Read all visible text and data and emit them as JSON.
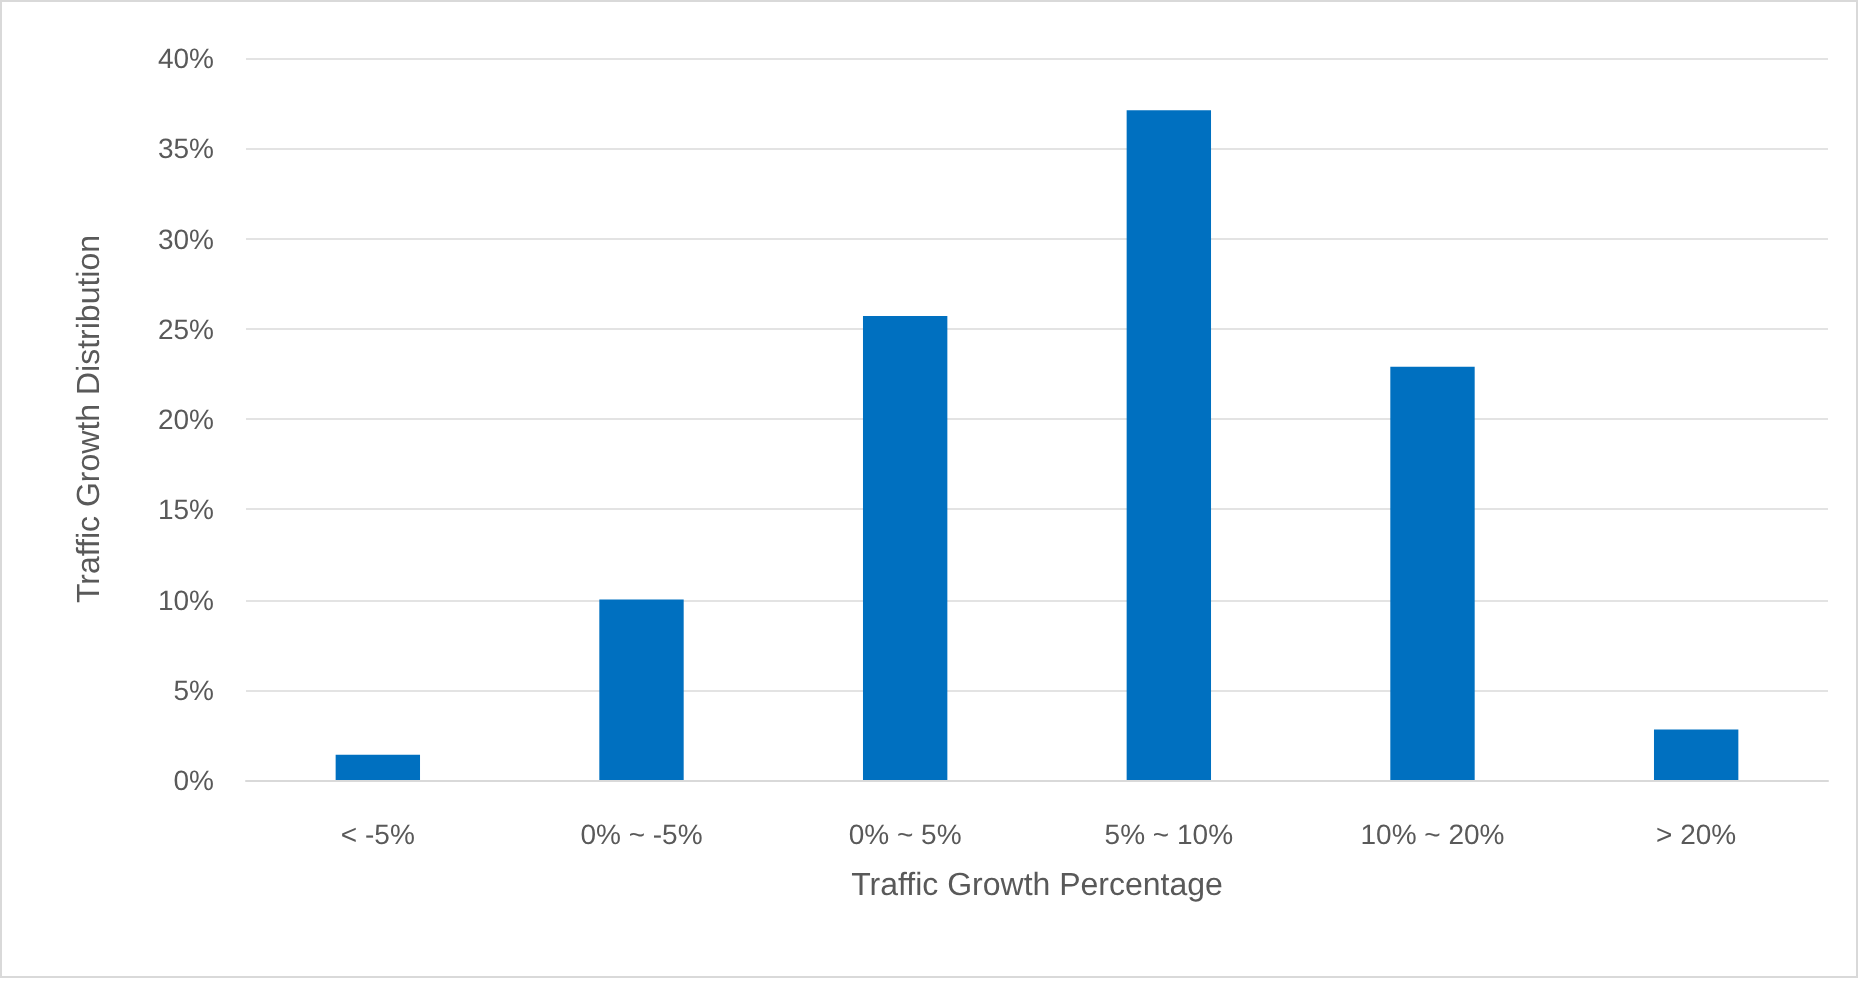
{
  "chart_data": {
    "type": "bar",
    "xlabel": "Traffic Growth Percentage",
    "ylabel": "Traffic Growth Distribution",
    "categories": [
      "< -5%",
      "0% ~ -5%",
      "0% ~ 5%",
      "5% ~ 10%",
      "10% ~ 20%",
      "> 20%"
    ],
    "values": [
      1.4,
      10,
      25.7,
      37.1,
      22.9,
      2.8
    ],
    "color": "#0070c0",
    "ylim": [
      0,
      40
    ],
    "yticks": [
      {
        "value": 0,
        "label": "0%"
      },
      {
        "value": 5,
        "label": "5%"
      },
      {
        "value": 10,
        "label": "10%"
      },
      {
        "value": 15,
        "label": "15%"
      },
      {
        "value": 20,
        "label": "20%"
      },
      {
        "value": 25,
        "label": "25%"
      },
      {
        "value": 30,
        "label": "30%"
      },
      {
        "value": 35,
        "label": "35%"
      },
      {
        "value": 40,
        "label": "40%"
      }
    ],
    "grid": "y"
  }
}
